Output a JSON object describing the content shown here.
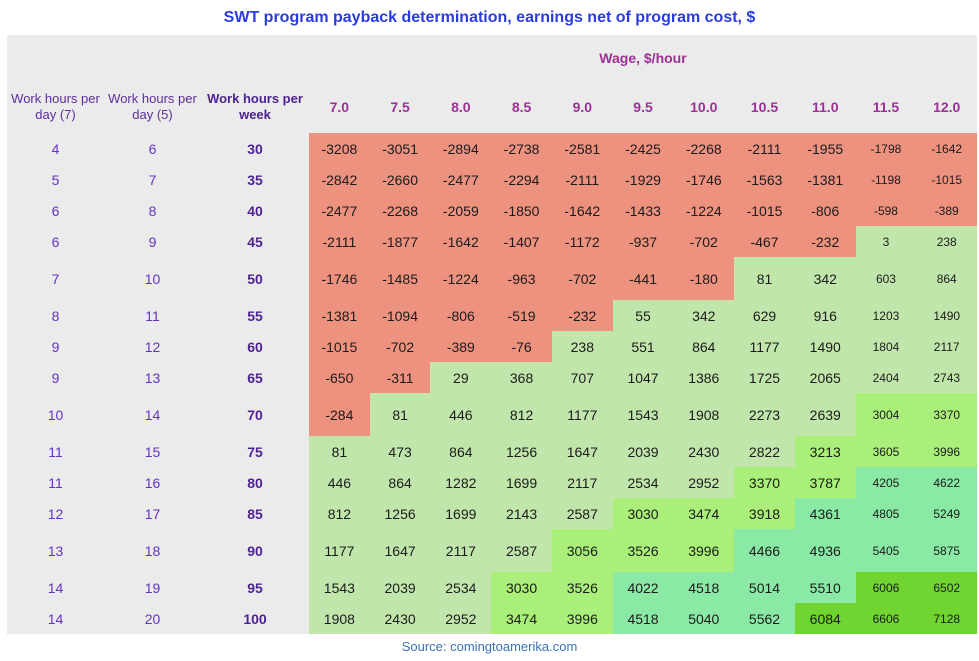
{
  "title": "SWT program payback determination, earnings net of program cost, $",
  "source": "Source: comingtoamerika.com",
  "table": {
    "wage_group_label": "Wage, $/hour",
    "col_headers": [
      "Work hours per day (7)",
      "Work hours per day (5)",
      "Work hours per week"
    ]
  },
  "colors": {
    "title": "#2b3cdf",
    "source": "#3b72b7",
    "panel_bg": "#ebebeb",
    "header_purple": "#5e2d9c",
    "week_purple": "#4e2390",
    "number_purple": "#6334c4",
    "wage_magenta": "#9e2f96",
    "cell_text": "#1b1b1b",
    "negative_salmon": "#ee9280",
    "green_low": "#c1e6ac",
    "green_mid": "#aaef7a",
    "green_high": "#8be9a6",
    "green_max": "#70d530"
  },
  "chart_data": {
    "type": "heatmap",
    "title": "SWT program payback determination, earnings net of program cost, $",
    "x_label": "Wage, $/hour",
    "wages": [
      "7.0",
      "7.5",
      "8.0",
      "8.5",
      "9.0",
      "9.5",
      "10.0",
      "10.5",
      "11.0",
      "11.5",
      "12.0"
    ],
    "rows": [
      {
        "day7": "4",
        "day5": "6",
        "week": "30",
        "values": [
          -3208,
          -3051,
          -2894,
          -2738,
          -2581,
          -2425,
          -2268,
          -2111,
          -1955,
          -1798,
          -1642
        ]
      },
      {
        "day7": "5",
        "day5": "7",
        "week": "35",
        "values": [
          -2842,
          -2660,
          -2477,
          -2294,
          -2111,
          -1929,
          -1746,
          -1563,
          -1381,
          -1198,
          -1015
        ]
      },
      {
        "day7": "6",
        "day5": "8",
        "week": "40",
        "values": [
          -2477,
          -2268,
          -2059,
          -1850,
          -1642,
          -1433,
          -1224,
          -1015,
          -806,
          -598,
          -389
        ]
      },
      {
        "day7": "6",
        "day5": "9",
        "week": "45",
        "values": [
          -2111,
          -1877,
          -1642,
          -1407,
          -1172,
          -937,
          -702,
          -467,
          -232,
          3,
          238
        ]
      },
      {
        "day7": "7",
        "day5": "10",
        "week": "50",
        "values": [
          -1746,
          -1485,
          -1224,
          -963,
          -702,
          -441,
          -180,
          81,
          342,
          603,
          864
        ]
      },
      {
        "day7": "8",
        "day5": "11",
        "week": "55",
        "values": [
          -1381,
          -1094,
          -806,
          -519,
          -232,
          55,
          342,
          629,
          916,
          1203,
          1490
        ]
      },
      {
        "day7": "9",
        "day5": "12",
        "week": "60",
        "values": [
          -1015,
          -702,
          -389,
          -76,
          238,
          551,
          864,
          1177,
          1490,
          1804,
          2117
        ]
      },
      {
        "day7": "9",
        "day5": "13",
        "week": "65",
        "values": [
          -650,
          -311,
          29,
          368,
          707,
          1047,
          1386,
          1725,
          2065,
          2404,
          2743
        ]
      },
      {
        "day7": "10",
        "day5": "14",
        "week": "70",
        "values": [
          -284,
          81,
          446,
          812,
          1177,
          1543,
          1908,
          2273,
          2639,
          3004,
          3370
        ]
      },
      {
        "day7": "11",
        "day5": "15",
        "week": "75",
        "values": [
          81,
          473,
          864,
          1256,
          1647,
          2039,
          2430,
          2822,
          3213,
          3605,
          3996
        ]
      },
      {
        "day7": "11",
        "day5": "16",
        "week": "80",
        "values": [
          446,
          864,
          1282,
          1699,
          2117,
          2534,
          2952,
          3370,
          3787,
          4205,
          4622
        ]
      },
      {
        "day7": "12",
        "day5": "17",
        "week": "85",
        "values": [
          812,
          1256,
          1699,
          2143,
          2587,
          3030,
          3474,
          3918,
          4361,
          4805,
          5249
        ]
      },
      {
        "day7": "13",
        "day5": "18",
        "week": "90",
        "values": [
          1177,
          1647,
          2117,
          2587,
          3056,
          3526,
          3996,
          4466,
          4936,
          5405,
          5875
        ]
      },
      {
        "day7": "14",
        "day5": "19",
        "week": "95",
        "values": [
          1543,
          2039,
          2534,
          3030,
          3526,
          4022,
          4518,
          5014,
          5510,
          6006,
          6502
        ]
      },
      {
        "day7": "14",
        "day5": "20",
        "week": "100",
        "values": [
          1908,
          2430,
          2952,
          3474,
          3996,
          4518,
          5040,
          5562,
          6084,
          6606,
          7128
        ]
      }
    ],
    "tall_rows": [
      "50",
      "70",
      "90"
    ],
    "color_scale": {
      "negative": {
        "rule": "value < 0",
        "color": "#ee9280"
      },
      "stops": [
        {
          "min": 0,
          "color": "#c1e6ac"
        },
        {
          "min": 3000,
          "color": "#aaef7a"
        },
        {
          "min": 4000,
          "color": "#8be9a6"
        },
        {
          "min": 6000,
          "color": "#70d530"
        }
      ]
    }
  }
}
